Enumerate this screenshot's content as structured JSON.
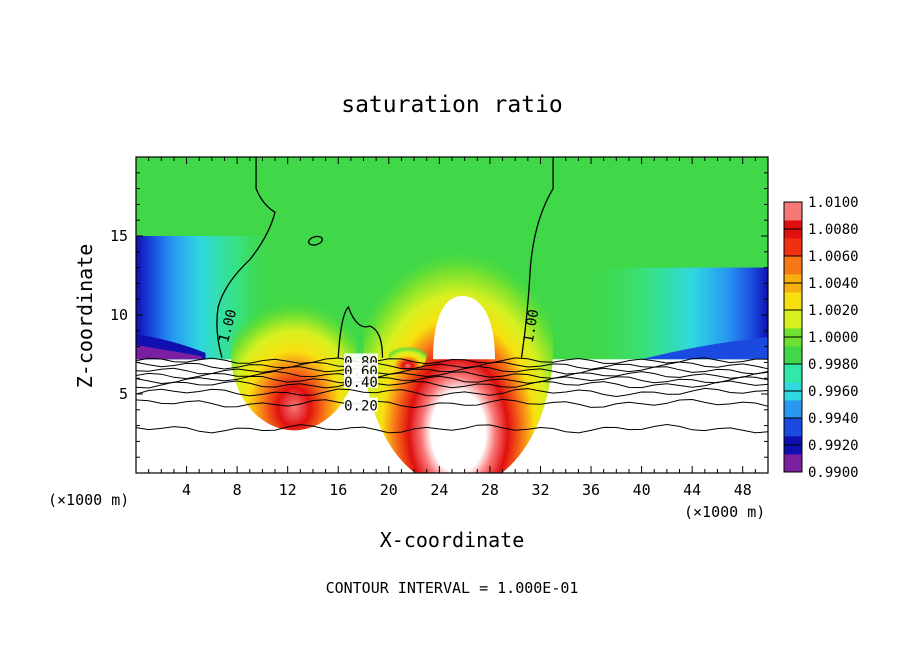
{
  "chart_data": {
    "type": "heatmap",
    "title": "saturation ratio",
    "xlabel": "X-coordinate",
    "ylabel": "Z-coordinate",
    "x_unit_left": "(×1000 m)",
    "x_unit_right": "(×1000 m)",
    "footer": "CONTOUR INTERVAL = 1.000E-01",
    "xlim": [
      0,
      50
    ],
    "ylim": [
      0,
      20
    ],
    "x_ticks": [
      4,
      8,
      12,
      16,
      20,
      24,
      28,
      32,
      36,
      40,
      44,
      48
    ],
    "y_ticks": [
      5,
      10,
      15
    ],
    "colorbar": {
      "levels": [
        "0.9900",
        "0.9920",
        "0.9940",
        "0.9960",
        "0.9980",
        "1.0000",
        "1.0020",
        "1.0040",
        "1.0060",
        "1.0080",
        "1.0100"
      ],
      "colors": [
        "#7a1fa0",
        "#1010b0",
        "#1a4ae0",
        "#2898f0",
        "#30d8e0",
        "#30e8a8",
        "#40d848",
        "#70e030",
        "#d8f020",
        "#f8e010",
        "#f8b010",
        "#f87818",
        "#f03010",
        "#e01010",
        "#f87878"
      ]
    },
    "contours": [
      {
        "label": "1.00",
        "value": 1.0
      },
      {
        "label": "0.80",
        "value": 0.8
      },
      {
        "label": "0.60",
        "value": 0.6
      },
      {
        "label": "0.40",
        "value": 0.4
      },
      {
        "label": "0.20",
        "value": 0.2
      }
    ]
  }
}
